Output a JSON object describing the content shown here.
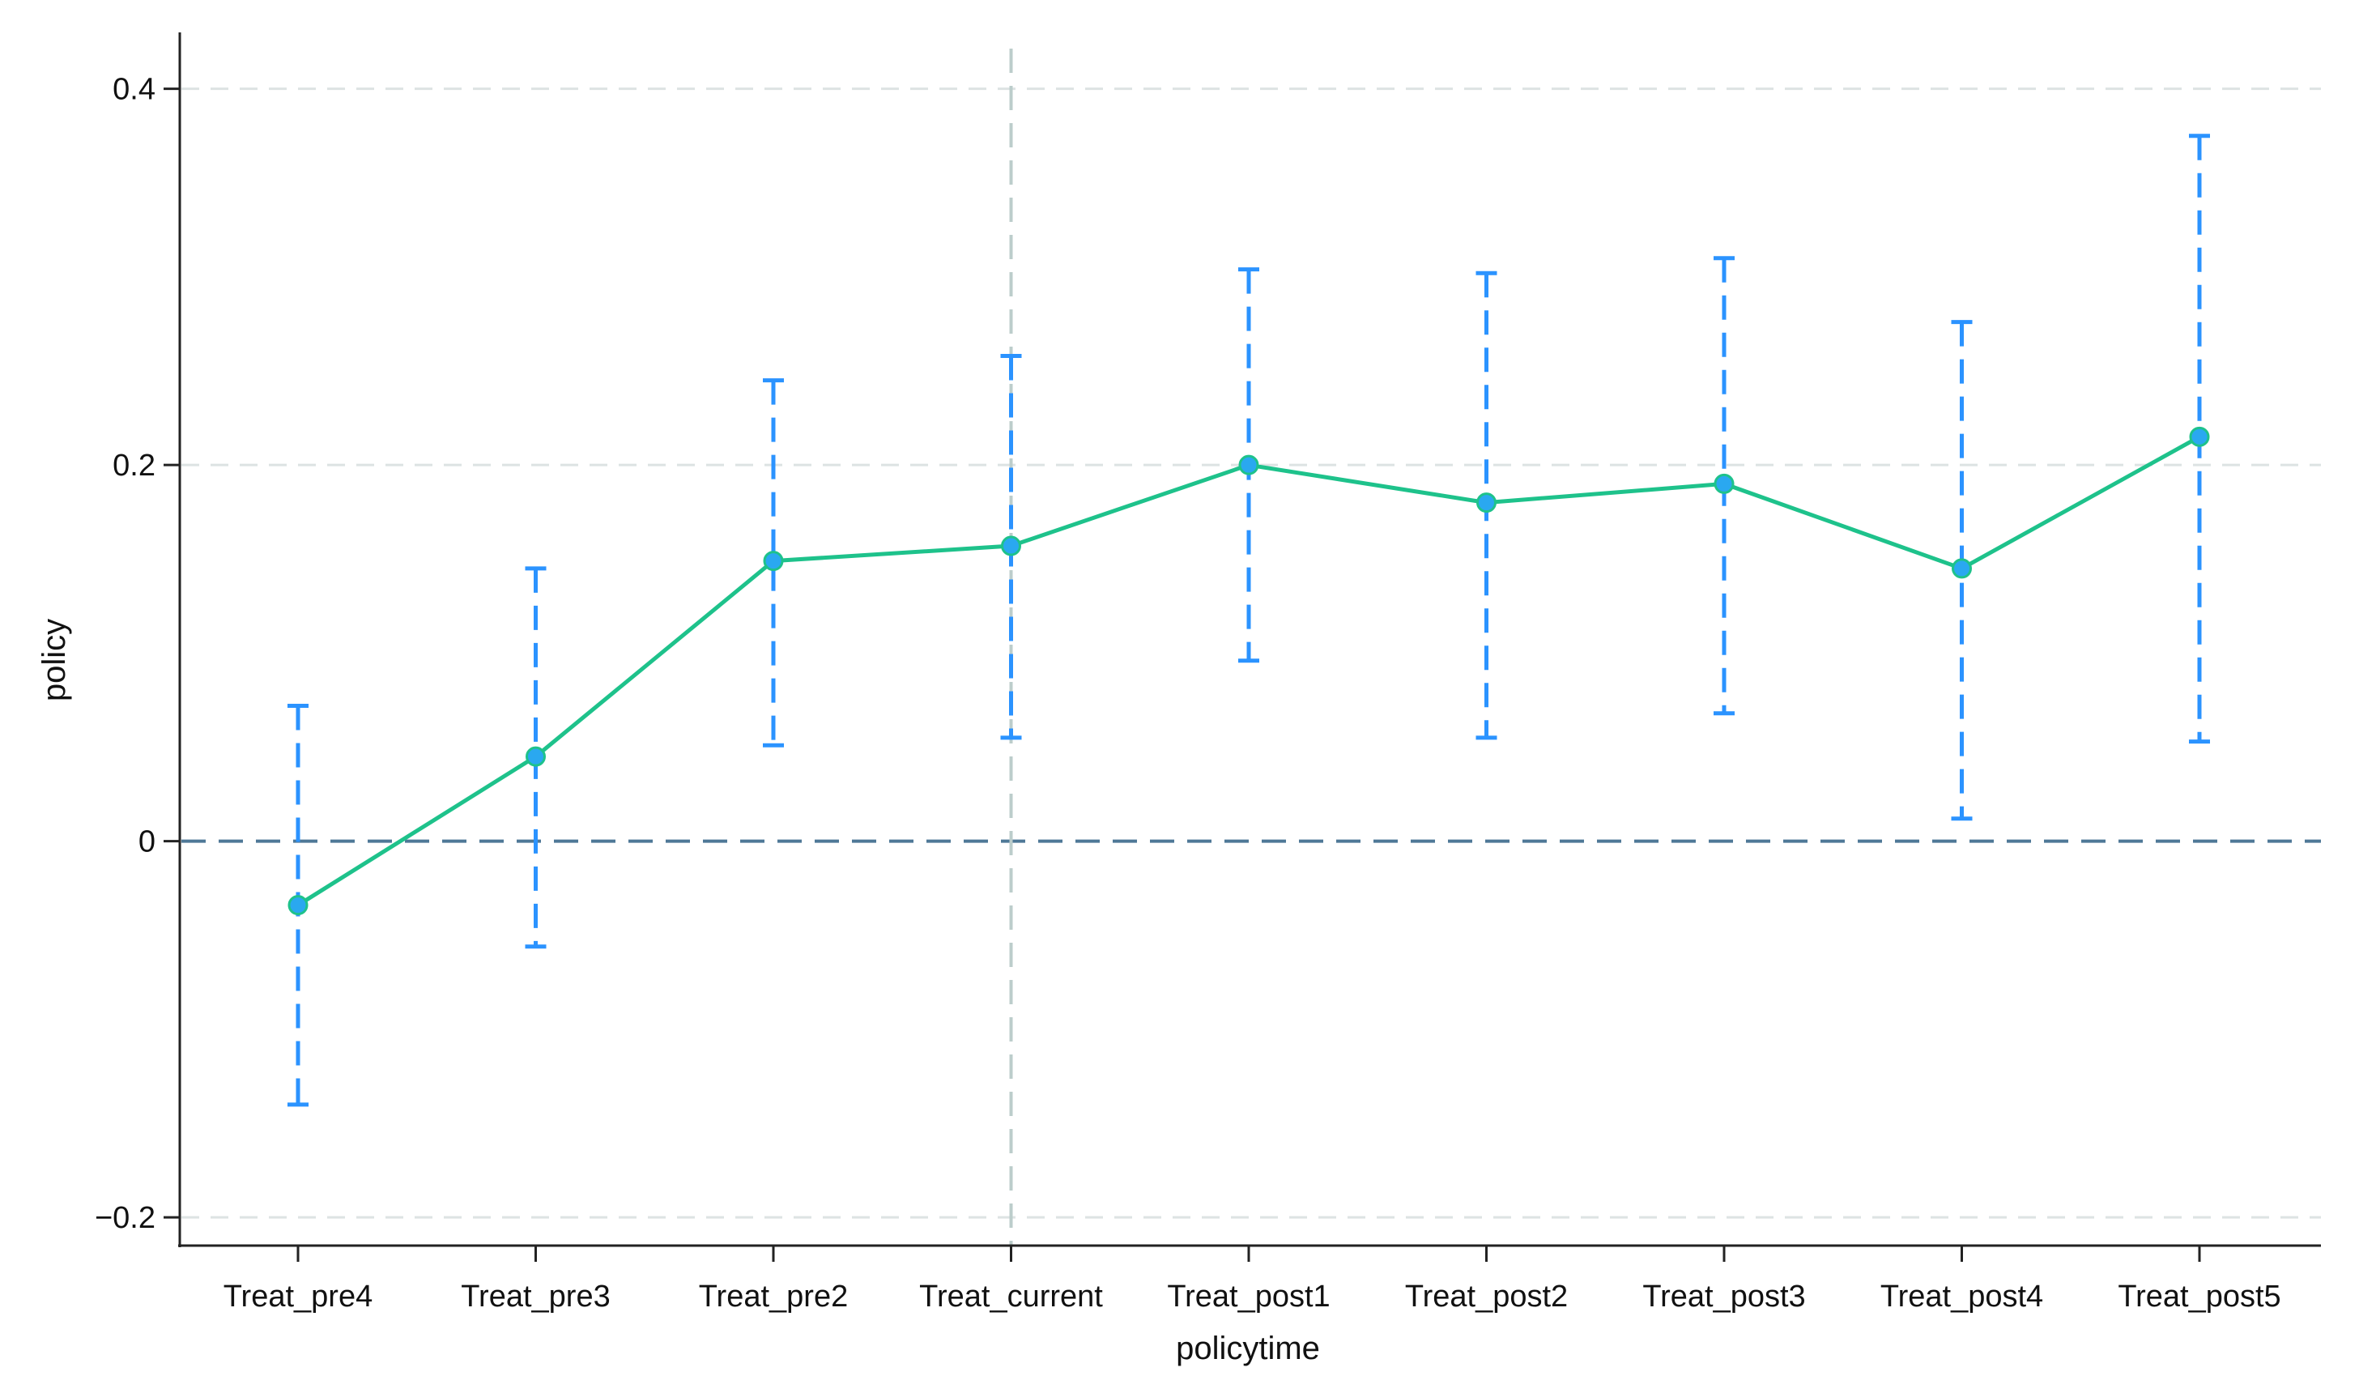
{
  "chart_data": {
    "type": "line",
    "xlabel": "policytime",
    "ylabel": "policy",
    "categories": [
      "Treat_pre4",
      "Treat_pre3",
      "Treat_pre2",
      "Treat_current",
      "Treat_post1",
      "Treat_post2",
      "Treat_post3",
      "Treat_post4",
      "Treat_post5"
    ],
    "series": [
      {
        "values": [
          -0.034,
          0.045,
          0.149,
          0.157,
          0.2,
          0.18,
          0.19,
          0.145,
          0.215
        ],
        "ci_lower": [
          -0.14,
          -0.056,
          0.051,
          0.055,
          0.096,
          0.055,
          0.068,
          0.012,
          0.053
        ],
        "ci_upper": [
          0.072,
          0.145,
          0.245,
          0.258,
          0.304,
          0.302,
          0.31,
          0.276,
          0.375
        ]
      }
    ],
    "ylim": [
      -0.215,
      0.43
    ],
    "yticks": [
      -0.2,
      0,
      0.2,
      0.4
    ],
    "ytick_labels": [
      "−0.2",
      "0",
      "0.2",
      "0.4"
    ],
    "reference_lines": {
      "y": 0,
      "x_category": "Treat_current"
    },
    "grid": true,
    "colors": {
      "line": "#1ec28b",
      "error_bar": "#2b93ff",
      "marker_fill": "#2aa8f0",
      "grid": "#dde3e3",
      "zero_line": "#4e7897",
      "event_line": "#bccdcb",
      "axis": "#222222"
    }
  }
}
